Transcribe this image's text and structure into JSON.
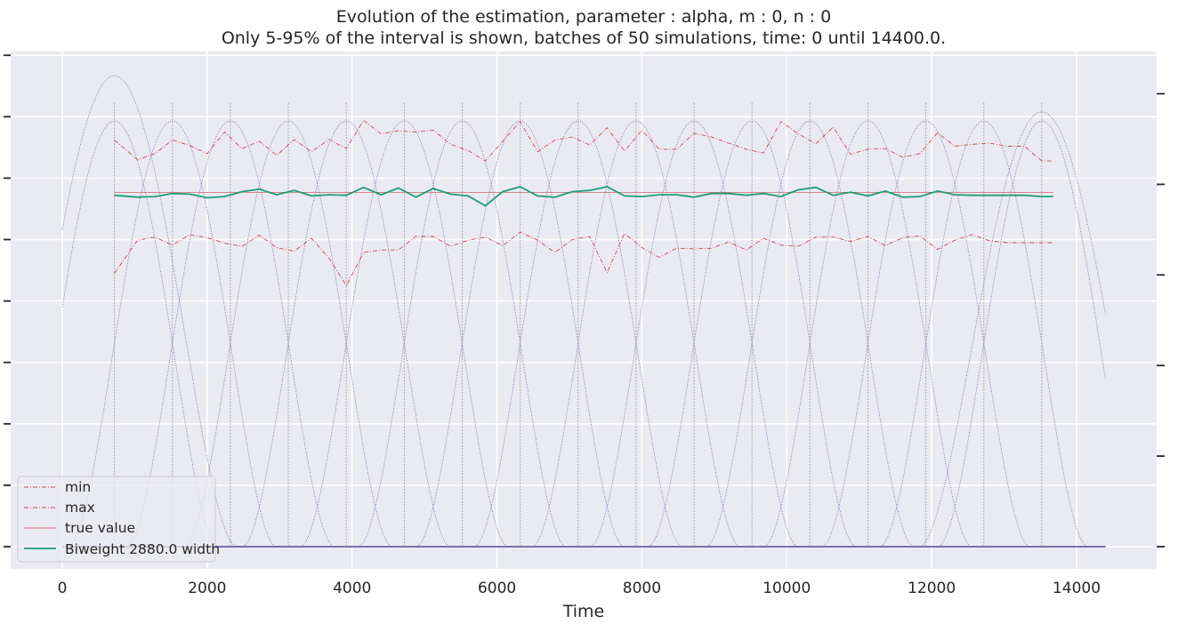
{
  "chart_data": {
    "type": "line",
    "title_lines": [
      "Evolution of the estimation, parameter : alpha, m : 0, n : 0",
      "Only 5-95% of the interval is shown, batches of 50 simulations, time: 0 until 14400.0."
    ],
    "xlabel": "Time",
    "ylabel": "",
    "xlim": [
      -720,
      14400
    ],
    "ylim": [
      -0.6,
      7.9
    ],
    "y2lim": [
      -0.03,
      1.05
    ],
    "grid": true,
    "legend_position": "lower-left",
    "xticks": [
      0,
      2000,
      4000,
      6000,
      8000,
      10000,
      12000,
      14000
    ],
    "xtick_labels": [
      "0",
      "2000",
      "4000",
      "6000",
      "8000",
      "10000",
      "12000",
      "14000"
    ],
    "yticks_left": [
      0,
      1,
      2,
      3,
      4,
      5,
      6,
      7,
      8
    ],
    "yticks_right": [
      0,
      0.2,
      0.4,
      0.6,
      0.8,
      1.0
    ],
    "estimation_times": [
      720,
      1040,
      1280,
      1520,
      1760,
      2000,
      2240,
      2480,
      2720,
      2960,
      3200,
      3440,
      3680,
      3920,
      4160,
      4400,
      4640,
      4880,
      5120,
      5360,
      5600,
      5840,
      6080,
      6320,
      6560,
      6800,
      7040,
      7280,
      7520,
      7760,
      8000,
      8240,
      8480,
      8720,
      8960,
      9200,
      9440,
      9680,
      9920,
      10160,
      10400,
      10640,
      10880,
      11120,
      11360,
      11600,
      11840,
      12080,
      12320,
      12560,
      12800,
      13040,
      13280,
      13520,
      13680
    ],
    "series": [
      {
        "name": "min",
        "color": "#c44e52",
        "style": "dash-dot",
        "values": [
          4.45,
          4.99,
          5.04,
          4.91,
          5.08,
          5.03,
          4.94,
          4.89,
          5.07,
          4.87,
          4.81,
          5.02,
          4.7,
          4.25,
          4.79,
          4.83,
          4.83,
          5.05,
          5.05,
          4.89,
          4.99,
          5.04,
          4.9,
          5.12,
          4.99,
          4.79,
          5.0,
          5.05,
          4.46,
          5.1,
          4.87,
          4.71,
          4.86,
          4.85,
          4.86,
          4.96,
          4.83,
          5.02,
          4.91,
          4.89,
          5.04,
          5.04,
          4.97,
          5.05,
          4.9,
          5.03,
          5.06,
          4.84,
          4.99,
          5.08,
          4.98,
          4.95,
          4.95,
          4.95,
          4.95
        ]
      },
      {
        "name": "max",
        "color": "#c44e52",
        "style": "dash-dot",
        "values": [
          6.62,
          6.3,
          6.4,
          6.62,
          6.53,
          6.4,
          6.75,
          6.48,
          6.6,
          6.37,
          6.63,
          6.43,
          6.63,
          6.48,
          6.94,
          6.72,
          6.77,
          6.75,
          6.78,
          6.55,
          6.45,
          6.28,
          6.6,
          6.92,
          6.43,
          6.62,
          6.67,
          6.54,
          6.82,
          6.44,
          6.78,
          6.47,
          6.47,
          6.73,
          6.67,
          6.57,
          6.47,
          6.41,
          6.92,
          6.72,
          6.56,
          6.83,
          6.39,
          6.47,
          6.48,
          6.34,
          6.4,
          6.74,
          6.52,
          6.55,
          6.57,
          6.52,
          6.52,
          6.28,
          6.28
        ]
      },
      {
        "name": "true value",
        "color": "#c44e52",
        "style": "solid-thin",
        "values": [
          5.77,
          5.77,
          5.77,
          5.77,
          5.77,
          5.77,
          5.77,
          5.77,
          5.77,
          5.77,
          5.77,
          5.77,
          5.77,
          5.77,
          5.77,
          5.77,
          5.77,
          5.77,
          5.77,
          5.77,
          5.77,
          5.77,
          5.77,
          5.77,
          5.77,
          5.77,
          5.77,
          5.77,
          5.77,
          5.77,
          5.77,
          5.77,
          5.77,
          5.77,
          5.77,
          5.77,
          5.77,
          5.77,
          5.77,
          5.77,
          5.77,
          5.77,
          5.77,
          5.77,
          5.77,
          5.77,
          5.77,
          5.77,
          5.77,
          5.77,
          5.77,
          5.77,
          5.77,
          5.77,
          5.77
        ]
      },
      {
        "name": "Biweight 2880.0 width",
        "color": "#1f9e74",
        "style": "solid",
        "values": [
          5.72,
          5.69,
          5.7,
          5.75,
          5.74,
          5.68,
          5.7,
          5.78,
          5.82,
          5.73,
          5.8,
          5.71,
          5.73,
          5.72,
          5.85,
          5.73,
          5.84,
          5.69,
          5.83,
          5.74,
          5.71,
          5.55,
          5.78,
          5.86,
          5.71,
          5.69,
          5.78,
          5.8,
          5.86,
          5.71,
          5.7,
          5.73,
          5.73,
          5.69,
          5.75,
          5.75,
          5.72,
          5.75,
          5.7,
          5.81,
          5.85,
          5.72,
          5.77,
          5.71,
          5.79,
          5.69,
          5.7,
          5.79,
          5.73,
          5.72,
          5.72,
          5.72,
          5.72,
          5.7,
          5.7
        ]
      }
    ],
    "kernel_bumps": {
      "color": "#7b6fb0",
      "style": "dotted",
      "centers": [
        720,
        1520,
        2320,
        3120,
        3920,
        4720,
        5520,
        6320,
        7120,
        7920,
        8720,
        9520,
        10320,
        11120,
        11920,
        12720,
        13520
      ],
      "heights": [
        0.94,
        0.94,
        0.94,
        0.94,
        0.94,
        0.94,
        0.94,
        0.94,
        0.94,
        0.94,
        0.94,
        0.94,
        0.94,
        0.94,
        0.94,
        0.94,
        0.94
      ],
      "first_bump_left_value": 0.58,
      "last_bump_right_value": 0.27,
      "half_width": 1440,
      "note_first_peak_value": 1.04
    },
    "vlines_color": "#999999"
  }
}
